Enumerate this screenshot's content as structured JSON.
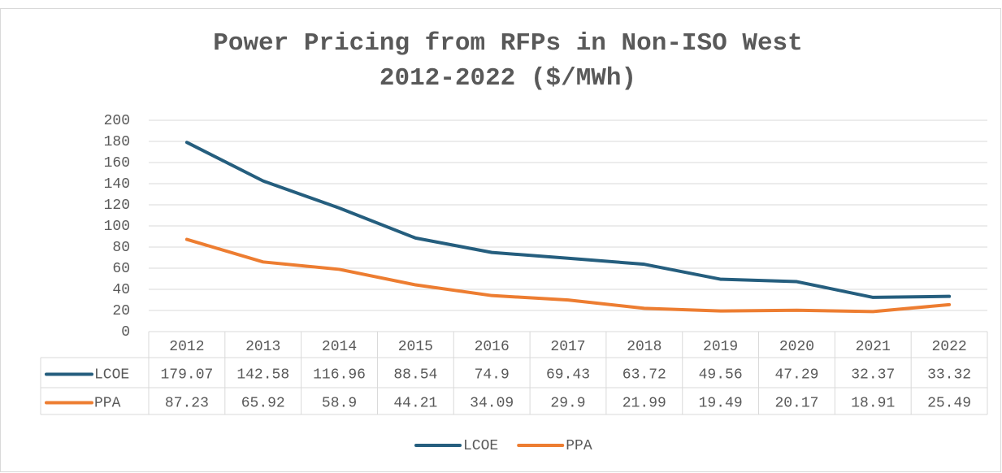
{
  "chart_data": {
    "type": "line",
    "title": [
      "Power Pricing from RFPs in Non-ISO West",
      "2012-2022 ($/MWh)"
    ],
    "categories": [
      "2012",
      "2013",
      "2014",
      "2015",
      "2016",
      "2017",
      "2018",
      "2019",
      "2020",
      "2021",
      "2022"
    ],
    "series": [
      {
        "name": "LCOE",
        "color": "#255e7e",
        "values": [
          179.07,
          142.58,
          116.96,
          88.54,
          74.9,
          69.43,
          63.72,
          49.56,
          47.29,
          32.37,
          33.32
        ]
      },
      {
        "name": "PPA",
        "color": "#ed7d31",
        "values": [
          87.23,
          65.92,
          58.9,
          44.21,
          34.09,
          29.9,
          21.99,
          19.49,
          20.17,
          18.91,
          25.49
        ]
      }
    ],
    "ylim": [
      0,
      200
    ],
    "yticks": [
      0,
      20,
      40,
      60,
      80,
      100,
      120,
      140,
      160,
      180,
      200
    ],
    "grid": true,
    "legend": "bottom"
  }
}
